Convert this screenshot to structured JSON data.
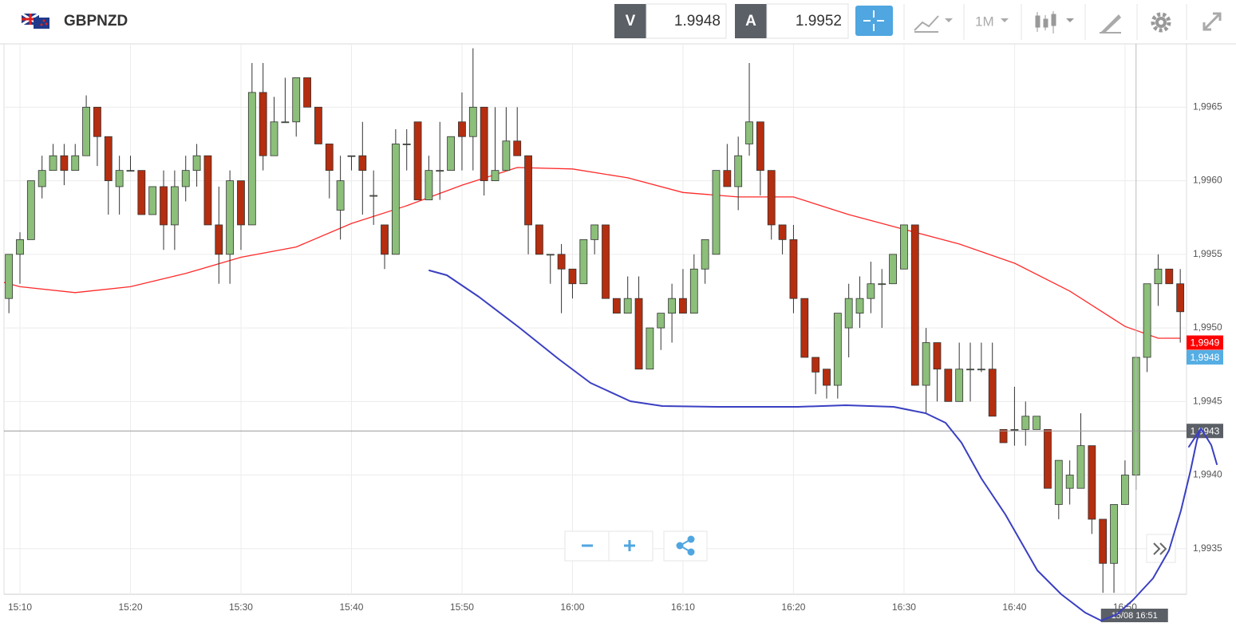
{
  "toolbar": {
    "symbol": "GBPNZD",
    "sell_label": "V",
    "sell_price": "1.9948",
    "buy_label": "A",
    "buy_price": "1.9952",
    "timeframe": "1M"
  },
  "chart_data": {
    "type": "candlestick",
    "up_color": "#8cbf7a",
    "down_color": "#b52e0f",
    "xlim": [
      "15:08",
      "16:56"
    ],
    "xticks": [
      "15:10",
      "15:20",
      "15:30",
      "15:40",
      "15:50",
      "16:00",
      "16:10",
      "16:20",
      "16:30",
      "16:40",
      "16:50"
    ],
    "ylim": [
      1.99319,
      1.99693
    ],
    "yticks": [
      {
        "value": 1.9935,
        "label": "1,9935"
      },
      {
        "value": 1.994,
        "label": "1,9940"
      },
      {
        "value": 1.9945,
        "label": "1,9945"
      },
      {
        "value": 1.995,
        "label": "1,9950"
      },
      {
        "value": 1.9955,
        "label": "1,9955"
      },
      {
        "value": 1.996,
        "label": "1,9960"
      },
      {
        "value": 1.9965,
        "label": "1,9965"
      }
    ],
    "grid": true,
    "x": [
      "15:09",
      "15:10",
      "15:11",
      "15:12",
      "15:13",
      "15:14",
      "15:15",
      "15:16",
      "15:17",
      "15:18",
      "15:19",
      "15:20",
      "15:21",
      "15:22",
      "15:23",
      "15:24",
      "15:25",
      "15:26",
      "15:27",
      "15:28",
      "15:29",
      "15:30",
      "15:31",
      "15:32",
      "15:33",
      "15:34",
      "15:35",
      "15:36",
      "15:37",
      "15:38",
      "15:39",
      "15:40",
      "15:41",
      "15:42",
      "15:43",
      "15:44",
      "15:45",
      "15:46",
      "15:47",
      "15:48",
      "15:49",
      "15:50",
      "15:51",
      "15:52",
      "15:53",
      "15:54",
      "15:55",
      "15:56",
      "15:57",
      "15:58",
      "15:59",
      "16:00",
      "16:01",
      "16:02",
      "16:03",
      "16:04",
      "16:05",
      "16:06",
      "16:07",
      "16:08",
      "16:09",
      "16:10",
      "16:11",
      "16:12",
      "16:13",
      "16:14",
      "16:15",
      "16:16",
      "16:17",
      "16:18",
      "16:19",
      "16:20",
      "16:21",
      "16:22",
      "16:23",
      "16:24",
      "16:25",
      "16:26",
      "16:27",
      "16:28",
      "16:29",
      "16:30",
      "16:31",
      "16:32",
      "16:33",
      "16:34",
      "16:35",
      "16:36",
      "16:37",
      "16:38",
      "16:39",
      "16:40",
      "16:41",
      "16:42",
      "16:43",
      "16:44",
      "16:45",
      "16:46",
      "16:47",
      "16:48",
      "16:49",
      "16:50",
      "16:51",
      "16:52",
      "16:53",
      "16:54",
      "16:55"
    ],
    "open": [
      1.9952,
      1.9955,
      1.9956,
      1.99596,
      1.99607,
      1.99617,
      1.99607,
      1.99617,
      1.9965,
      1.9963,
      1.99596,
      1.99607,
      1.99607,
      1.99577,
      1.99596,
      1.9957,
      1.99596,
      1.99607,
      1.99617,
      1.9957,
      1.9955,
      1.996,
      1.9957,
      1.9966,
      1.99617,
      1.9964,
      1.9964,
      1.9967,
      1.9965,
      1.99625,
      1.9958,
      1.99617,
      1.99617,
      1.9959,
      1.9957,
      1.9955,
      1.99625,
      1.9964,
      1.99587,
      1.99607,
      1.99607,
      1.9964,
      1.9963,
      1.9965,
      1.996,
      1.99607,
      1.99627,
      1.99617,
      1.9957,
      1.9955,
      1.9955,
      1.9954,
      1.9953,
      1.9956,
      1.9957,
      1.9952,
      1.9951,
      1.9952,
      1.99472,
      1.995,
      1.9951,
      1.9952,
      1.9951,
      1.9954,
      1.9955,
      1.99607,
      1.99596,
      1.99625,
      1.9964,
      1.99607,
      1.9957,
      1.9956,
      1.9952,
      1.9948,
      1.99472,
      1.99461,
      1.995,
      1.9951,
      1.9952,
      1.9953,
      1.9953,
      1.9954,
      1.9957,
      1.99461,
      1.9949,
      1.99472,
      1.9945,
      1.99472,
      1.99472,
      1.99472,
      1.99431,
      1.99431,
      1.99431,
      1.99431,
      1.99431,
      1.9938,
      1.99391,
      1.99391,
      1.9942,
      1.9937,
      1.9934,
      1.9938,
      1.994,
      1.9948,
      1.9953,
      1.9954,
      1.9953
    ],
    "high": [
      1.9955,
      1.99565,
      1.996,
      1.99617,
      1.99625,
      1.99625,
      1.99625,
      1.99658,
      1.9965,
      1.9963,
      1.99617,
      1.99617,
      1.99607,
      1.99596,
      1.99607,
      1.99607,
      1.99617,
      1.99625,
      1.99617,
      1.99596,
      1.99607,
      1.996,
      1.9968,
      1.9968,
      1.99657,
      1.9967,
      1.9967,
      1.9967,
      1.9965,
      1.99625,
      1.99617,
      1.99617,
      1.9964,
      1.99607,
      1.9957,
      1.99635,
      1.99635,
      1.9964,
      1.99617,
      1.9964,
      1.9963,
      1.9966,
      1.9969,
      1.9965,
      1.9965,
      1.9965,
      1.9965,
      1.99617,
      1.9957,
      1.9955,
      1.99557,
      1.9954,
      1.9956,
      1.9957,
      1.9957,
      1.9952,
      1.99535,
      1.99535,
      1.995,
      1.9951,
      1.9953,
      1.9954,
      1.9955,
      1.9956,
      1.99607,
      1.99625,
      1.9963,
      1.9968,
      1.9964,
      1.99607,
      1.9957,
      1.9957,
      1.9952,
      1.9948,
      1.99472,
      1.9951,
      1.9953,
      1.99535,
      1.99545,
      1.9954,
      1.9955,
      1.9957,
      1.9957,
      1.995,
      1.9949,
      1.99472,
      1.9949,
      1.9949,
      1.9949,
      1.9949,
      1.99431,
      1.9946,
      1.9945,
      1.9944,
      1.99431,
      1.9941,
      1.9941,
      1.99442,
      1.9942,
      1.9937,
      1.9938,
      1.9941,
      1.9948,
      1.9953,
      1.9955,
      1.9954,
      1.9954
    ],
    "low": [
      1.9951,
      1.9953,
      1.9956,
      1.99588,
      1.99607,
      1.99597,
      1.99607,
      1.99617,
      1.9961,
      1.99577,
      1.99577,
      1.99607,
      1.99577,
      1.99577,
      1.99553,
      1.99553,
      1.99586,
      1.99596,
      1.9957,
      1.9953,
      1.9953,
      1.99553,
      1.9957,
      1.99607,
      1.99617,
      1.9964,
      1.9963,
      1.9965,
      1.99625,
      1.99588,
      1.9956,
      1.99607,
      1.99577,
      1.9957,
      1.9954,
      1.9955,
      1.99607,
      1.99587,
      1.99587,
      1.99587,
      1.99607,
      1.99607,
      1.99607,
      1.9959,
      1.996,
      1.99607,
      1.99617,
      1.9955,
      1.9955,
      1.9953,
      1.9951,
      1.9952,
      1.9953,
      1.9955,
      1.9952,
      1.9951,
      1.9951,
      1.99472,
      1.99472,
      1.99485,
      1.9949,
      1.9951,
      1.9951,
      1.9953,
      1.9955,
      1.99596,
      1.9958,
      1.99617,
      1.9959,
      1.9956,
      1.9955,
      1.9951,
      1.9948,
      1.99455,
      1.99452,
      1.99452,
      1.9948,
      1.995,
      1.9951,
      1.995,
      1.9953,
      1.9954,
      1.99461,
      1.99442,
      1.9945,
      1.9945,
      1.9945,
      1.9945,
      1.9947,
      1.9944,
      1.99422,
      1.9942,
      1.9942,
      1.99431,
      1.99391,
      1.9937,
      1.9938,
      1.99391,
      1.9936,
      1.9932,
      1.9932,
      1.9938,
      1.9939,
      1.9947,
      1.99515,
      1.9953,
      1.9949
    ],
    "close": [
      1.9955,
      1.9956,
      1.996,
      1.99607,
      1.99617,
      1.99607,
      1.99617,
      1.9965,
      1.9963,
      1.996,
      1.99607,
      1.99607,
      1.99577,
      1.99596,
      1.9957,
      1.99596,
      1.99607,
      1.99617,
      1.9957,
      1.9955,
      1.996,
      1.9957,
      1.9966,
      1.99617,
      1.9964,
      1.9964,
      1.9967,
      1.9965,
      1.99625,
      1.99607,
      1.996,
      1.99617,
      1.99607,
      1.9959,
      1.9955,
      1.99625,
      1.99625,
      1.99587,
      1.99607,
      1.99607,
      1.9963,
      1.9963,
      1.9965,
      1.996,
      1.99607,
      1.99627,
      1.99617,
      1.9957,
      1.9955,
      1.9955,
      1.9954,
      1.9953,
      1.9956,
      1.9957,
      1.9952,
      1.9951,
      1.9952,
      1.99472,
      1.995,
      1.9951,
      1.9952,
      1.9951,
      1.9954,
      1.9956,
      1.99607,
      1.99596,
      1.99617,
      1.9964,
      1.99607,
      1.9957,
      1.9956,
      1.9952,
      1.9948,
      1.9947,
      1.99461,
      1.9951,
      1.9952,
      1.9952,
      1.9953,
      1.9953,
      1.9955,
      1.9957,
      1.99461,
      1.9949,
      1.99472,
      1.9945,
      1.99472,
      1.99472,
      1.99472,
      1.9944,
      1.99422,
      1.99431,
      1.9944,
      1.9944,
      1.99391,
      1.9941,
      1.994,
      1.9942,
      1.9937,
      1.9934,
      1.9938,
      1.994,
      1.9948,
      1.9953,
      1.9954,
      1.9953,
      1.99511
    ],
    "overlay_line": {
      "color": "#ff2a2a",
      "x": [
        "15:08",
        "15:10",
        "15:15",
        "15:20",
        "15:25",
        "15:30",
        "15:35",
        "15:40",
        "15:45",
        "15:50",
        "15:55",
        "16:00",
        "16:05",
        "16:10",
        "16:15",
        "16:20",
        "16:25",
        "16:30",
        "16:35",
        "16:40",
        "16:45",
        "16:50",
        "16:53",
        "16:55"
      ],
      "values": [
        1.99532,
        1.99528,
        1.99524,
        1.99528,
        1.99537,
        1.99548,
        1.99555,
        1.99571,
        1.99583,
        1.99597,
        1.99609,
        1.99608,
        1.99602,
        1.99592,
        1.99589,
        1.99589,
        1.99577,
        1.99567,
        1.99557,
        1.99544,
        1.99525,
        1.99501,
        1.99493,
        1.99493
      ]
    },
    "price_tags": [
      {
        "value": 1.9949,
        "label": "1,9949",
        "color": "#ff0000"
      },
      {
        "value": 1.9948,
        "label": "1,9948",
        "color": "#55aee3"
      }
    ],
    "crosshair": {
      "x_label": "15/08 16:51",
      "y": {
        "value": 1.9943,
        "label": "1,9943"
      }
    }
  }
}
